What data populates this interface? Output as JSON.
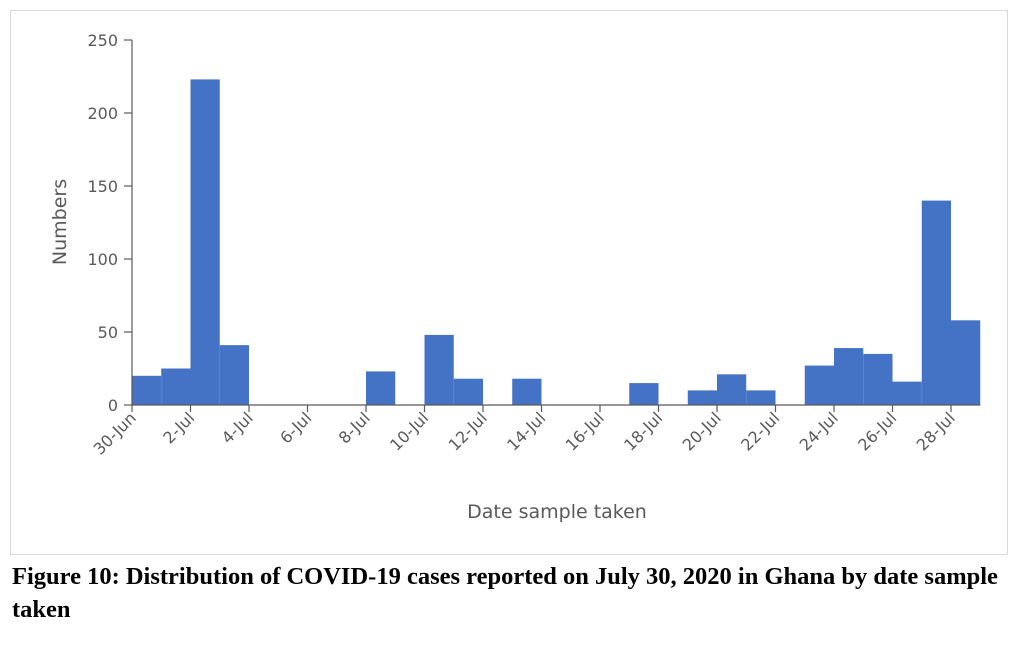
{
  "caption": "Figure 10: Distribution of COVID-19 cases reported on July 30, 2020 in Ghana by date sample taken",
  "chart_data": {
    "type": "bar",
    "title": "",
    "xlabel": "Date sample taken",
    "ylabel": "Numbers",
    "ylim": [
      0,
      250
    ],
    "y_ticks": [
      0,
      50,
      100,
      150,
      200,
      250
    ],
    "grid": false,
    "legend": "none",
    "bar_color": "#4472C4",
    "categories": [
      "30-Jun",
      "1-Jul",
      "2-Jul",
      "3-Jul",
      "4-Jul",
      "5-Jul",
      "6-Jul",
      "7-Jul",
      "8-Jul",
      "9-Jul",
      "10-Jul",
      "11-Jul",
      "12-Jul",
      "13-Jul",
      "14-Jul",
      "15-Jul",
      "16-Jul",
      "17-Jul",
      "18-Jul",
      "19-Jul",
      "20-Jul",
      "21-Jul",
      "22-Jul",
      "23-Jul",
      "24-Jul",
      "25-Jul",
      "26-Jul",
      "27-Jul",
      "28-Jul"
    ],
    "values": [
      20,
      25,
      223,
      41,
      0,
      0,
      0,
      0,
      23,
      0,
      48,
      18,
      0,
      18,
      0,
      0,
      0,
      15,
      0,
      10,
      21,
      10,
      0,
      27,
      39,
      35,
      16,
      140,
      58
    ],
    "x_tick_labels": [
      "30-Jun",
      "2-Jul",
      "4-Jul",
      "6-Jul",
      "8-Jul",
      "10-Jul",
      "12-Jul",
      "14-Jul",
      "16-Jul",
      "18-Jul",
      "20-Jul",
      "22-Jul",
      "24-Jul",
      "26-Jul",
      "28-Jul"
    ]
  }
}
